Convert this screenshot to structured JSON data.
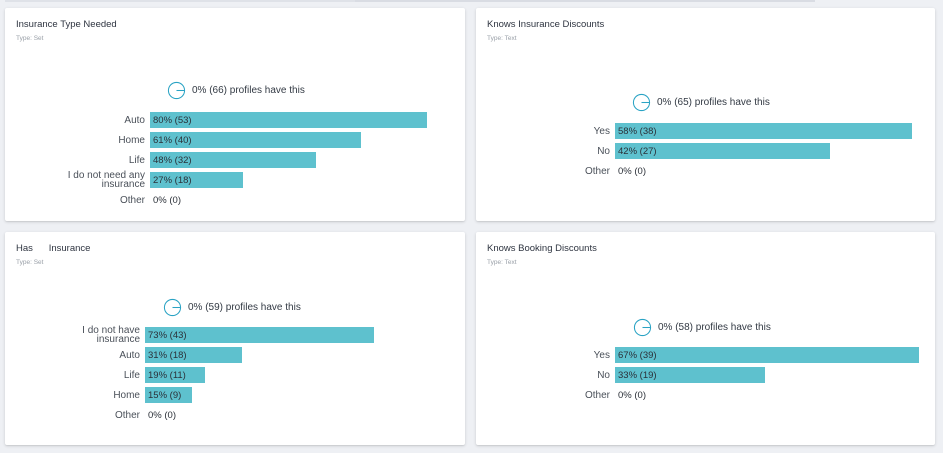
{
  "colors": {
    "bar": "#5ec1ce",
    "ring": "#2aa3c4"
  },
  "icons": {
    "summary": "pie-ring-icon"
  },
  "cards": [
    {
      "title": "Insurance Type Needed",
      "type_label": "Type: Set",
      "summary": "0% (66) profiles have this",
      "rows": [
        {
          "label": "Auto",
          "value": "80% (53)",
          "fraction": 0.8
        },
        {
          "label": "Home",
          "value": "61% (40)",
          "fraction": 0.61
        },
        {
          "label": "Life",
          "value": "48% (32)",
          "fraction": 0.48
        },
        {
          "label": "I do not need any insurance",
          "value": "27% (18)",
          "fraction": 0.27
        },
        {
          "label": "Other",
          "value": "0% (0)",
          "fraction": 0
        }
      ]
    },
    {
      "title": "Knows Insurance Discounts",
      "type_label": "Type: Text",
      "summary": "0% (65) profiles have this",
      "rows": [
        {
          "label": "Yes",
          "value": "58% (38)",
          "fraction": 0.58
        },
        {
          "label": "No",
          "value": "42% (27)",
          "fraction": 0.42
        },
        {
          "label": "Other",
          "value": "0% (0)",
          "fraction": 0
        }
      ]
    },
    {
      "title": "Has      Insurance",
      "type_label": "Type: Set",
      "summary": "0% (59) profiles have this",
      "rows": [
        {
          "label": "I do not have insurance",
          "value": "73% (43)",
          "fraction": 0.73
        },
        {
          "label": "Auto",
          "value": "31% (18)",
          "fraction": 0.31
        },
        {
          "label": "Life",
          "value": "19% (11)",
          "fraction": 0.19
        },
        {
          "label": "Home",
          "value": "15% (9)",
          "fraction": 0.15
        },
        {
          "label": "Other",
          "value": "0% (0)",
          "fraction": 0
        }
      ]
    },
    {
      "title": "Knows Booking Discounts",
      "type_label": "Type: Text",
      "summary": "0% (58) profiles have this",
      "rows": [
        {
          "label": "Yes",
          "value": "67% (39)",
          "fraction": 0.67
        },
        {
          "label": "No",
          "value": "33% (19)",
          "fraction": 0.33
        },
        {
          "label": "Other",
          "value": "0% (0)",
          "fraction": 0
        }
      ]
    }
  ]
}
